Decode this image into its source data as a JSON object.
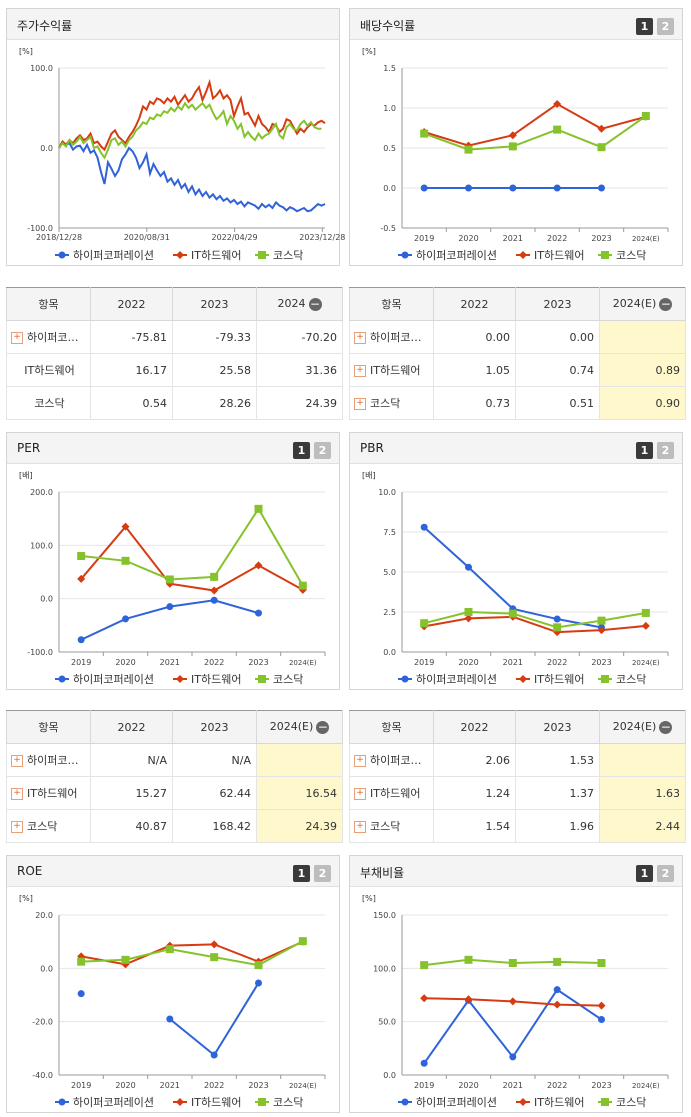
{
  "legend": [
    "하이퍼코퍼레이션",
    "IT하드웨어",
    "코스닥"
  ],
  "colors": {
    "s1": "#2f63d9",
    "s2": "#d63b12",
    "s3": "#86c22b"
  },
  "panels": {
    "stock": {
      "title": "주가수익률",
      "unit": "[%]"
    },
    "dividend": {
      "title": "배당수익률",
      "unit": "[%]",
      "btn1": "1",
      "btn2": "2"
    },
    "per": {
      "title": "PER",
      "unit": "[배]",
      "btn1": "1",
      "btn2": "2"
    },
    "pbr": {
      "title": "PBR",
      "unit": "[배]",
      "btn1": "1",
      "btn2": "2"
    },
    "roe": {
      "title": "ROE",
      "unit": "[%]",
      "btn1": "1",
      "btn2": "2"
    },
    "debt": {
      "title": "부채비율",
      "unit": "[%]",
      "btn1": "1",
      "btn2": "2"
    }
  },
  "tables": {
    "stock": {
      "h": [
        "항목",
        "2022",
        "2023",
        "2024"
      ],
      "rows": [
        {
          "name": "하이퍼코…",
          "v": [
            "-75.81",
            "-79.33",
            "-70.20"
          ],
          "plus": true
        },
        {
          "name": "IT하드웨어",
          "v": [
            "16.17",
            "25.58",
            "31.36"
          ],
          "plus": false
        },
        {
          "name": "코스닥",
          "v": [
            "0.54",
            "28.26",
            "24.39"
          ],
          "plus": false
        }
      ]
    },
    "dividend": {
      "h": [
        "항목",
        "2022",
        "2023",
        "2024(E)"
      ],
      "rows": [
        {
          "name": "하이퍼코…",
          "v": [
            "0.00",
            "0.00",
            ""
          ],
          "plus": true
        },
        {
          "name": "IT하드웨어",
          "v": [
            "1.05",
            "0.74",
            "0.89"
          ],
          "plus": true
        },
        {
          "name": "코스닥",
          "v": [
            "0.73",
            "0.51",
            "0.90"
          ],
          "plus": true
        }
      ]
    },
    "per": {
      "h": [
        "항목",
        "2022",
        "2023",
        "2024(E)"
      ],
      "rows": [
        {
          "name": "하이퍼코…",
          "v": [
            "N/A",
            "N/A",
            ""
          ],
          "plus": true
        },
        {
          "name": "IT하드웨어",
          "v": [
            "15.27",
            "62.44",
            "16.54"
          ],
          "plus": true
        },
        {
          "name": "코스닥",
          "v": [
            "40.87",
            "168.42",
            "24.39"
          ],
          "plus": true
        }
      ]
    },
    "pbr": {
      "h": [
        "항목",
        "2022",
        "2023",
        "2024(E)"
      ],
      "rows": [
        {
          "name": "하이퍼코…",
          "v": [
            "2.06",
            "1.53",
            ""
          ],
          "plus": true
        },
        {
          "name": "IT하드웨어",
          "v": [
            "1.24",
            "1.37",
            "1.63"
          ],
          "plus": true
        },
        {
          "name": "코스닥",
          "v": [
            "1.54",
            "1.96",
            "2.44"
          ],
          "plus": true
        }
      ]
    }
  },
  "chart_data": [
    {
      "id": "stock",
      "type": "line",
      "title": "주가수익률",
      "ylabel": "[%]",
      "ylim": [
        -100,
        100
      ],
      "yticks": [
        "100.0",
        "0.0",
        "-100.0"
      ],
      "xticks": [
        "2018/12/28",
        "2020/08/31",
        "2022/04/29",
        "2023/12/28"
      ],
      "series": [
        {
          "name": "하이퍼코퍼레이션",
          "values": [
            0,
            8,
            4,
            6,
            -2,
            2,
            3,
            -4,
            4,
            -6,
            -3,
            -12,
            -30,
            -45,
            -18,
            -26,
            -35,
            -28,
            -14,
            -8,
            0,
            -4,
            -12,
            -25,
            -18,
            -8,
            -32,
            -20,
            -28,
            -35,
            -30,
            -42,
            -38,
            -46,
            -40,
            -50,
            -45,
            -55,
            -48,
            -58,
            -52,
            -60,
            -55,
            -62,
            -58,
            -64,
            -60,
            -66,
            -63,
            -68,
            -65,
            -70,
            -67,
            -73,
            -68,
            -70,
            -72,
            -76,
            -70,
            -74,
            -71,
            -75,
            -68,
            -72,
            -74,
            -78,
            -74,
            -76,
            -79,
            -77,
            -75,
            -79,
            -78,
            -74,
            -70,
            -72,
            -70
          ]
        },
        {
          "name": "IT하드웨어",
          "values": [
            0,
            8,
            4,
            10,
            6,
            12,
            16,
            10,
            12,
            18,
            6,
            8,
            2,
            -2,
            8,
            18,
            22,
            14,
            10,
            6,
            14,
            20,
            28,
            38,
            52,
            48,
            58,
            55,
            62,
            60,
            56,
            62,
            58,
            64,
            54,
            60,
            66,
            58,
            62,
            70,
            76,
            60,
            70,
            82,
            62,
            66,
            72,
            62,
            66,
            60,
            40,
            52,
            62,
            42,
            44,
            36,
            28,
            40,
            30,
            26,
            20,
            30,
            28,
            20,
            24,
            36,
            34,
            26,
            18,
            24,
            20,
            26,
            30,
            28,
            32,
            34,
            31
          ]
        },
        {
          "name": "코스닥",
          "values": [
            0,
            6,
            2,
            10,
            4,
            8,
            14,
            6,
            10,
            14,
            0,
            2,
            -6,
            -12,
            -2,
            10,
            12,
            4,
            8,
            2,
            10,
            14,
            22,
            26,
            32,
            30,
            38,
            36,
            42,
            40,
            46,
            44,
            50,
            46,
            52,
            48,
            56,
            50,
            54,
            48,
            52,
            56,
            50,
            54,
            44,
            36,
            40,
            46,
            30,
            40,
            34,
            24,
            30,
            14,
            20,
            14,
            10,
            18,
            12,
            16,
            18,
            24,
            30,
            16,
            12,
            26,
            30,
            24,
            22,
            30,
            34,
            28,
            32,
            26,
            24,
            24
          ]
        }
      ]
    },
    {
      "id": "dividend",
      "type": "line",
      "title": "배당수익률",
      "ylabel": "[%]",
      "ylim": [
        -0.5,
        1.5
      ],
      "yticks": [
        "1.5",
        "1.0",
        "0.5",
        "0.0",
        "-0.5"
      ],
      "categories": [
        "2019",
        "2020",
        "2021",
        "2022",
        "2023",
        "2024(E)"
      ],
      "series": [
        {
          "name": "하이퍼코퍼레이션",
          "values": [
            0.0,
            0.0,
            0.0,
            0.0,
            0.0,
            null
          ]
        },
        {
          "name": "IT하드웨어",
          "values": [
            0.7,
            0.53,
            0.66,
            1.05,
            0.74,
            0.89
          ]
        },
        {
          "name": "코스닥",
          "values": [
            0.68,
            0.48,
            0.52,
            0.73,
            0.51,
            0.9
          ]
        }
      ]
    },
    {
      "id": "per",
      "type": "line",
      "title": "PER",
      "ylabel": "[배]",
      "ylim": [
        -100,
        200
      ],
      "yticks": [
        "200.0",
        "100.0",
        "0.0",
        "-100.0"
      ],
      "categories": [
        "2019",
        "2020",
        "2021",
        "2022",
        "2023",
        "2024(E)"
      ],
      "series": [
        {
          "name": "하이퍼코퍼레이션",
          "values": [
            -77,
            -38,
            -15,
            -3,
            -27,
            null
          ]
        },
        {
          "name": "IT하드웨어",
          "values": [
            37,
            135,
            28,
            15.27,
            62.44,
            16.54
          ]
        },
        {
          "name": "코스닥",
          "values": [
            80,
            71,
            36,
            40.87,
            168.42,
            24.39
          ]
        }
      ]
    },
    {
      "id": "pbr",
      "type": "line",
      "title": "PBR",
      "ylabel": "[배]",
      "ylim": [
        0,
        10
      ],
      "yticks": [
        "10.0",
        "7.5",
        "5.0",
        "2.5",
        "0.0"
      ],
      "categories": [
        "2019",
        "2020",
        "2021",
        "2022",
        "2023",
        "2024(E)"
      ],
      "series": [
        {
          "name": "하이퍼코퍼레이션",
          "values": [
            7.8,
            5.3,
            2.7,
            2.06,
            1.53,
            null
          ]
        },
        {
          "name": "IT하드웨어",
          "values": [
            1.6,
            2.1,
            2.2,
            1.24,
            1.37,
            1.63
          ]
        },
        {
          "name": "코스닥",
          "values": [
            1.8,
            2.5,
            2.4,
            1.54,
            1.96,
            2.44
          ]
        }
      ]
    },
    {
      "id": "roe",
      "type": "line",
      "title": "ROE",
      "ylabel": "[%]",
      "ylim": [
        -40,
        20
      ],
      "yticks": [
        "20.0",
        "0.0",
        "-20.0",
        "-40.0"
      ],
      "categories": [
        "2019",
        "2020",
        "2021",
        "2022",
        "2023",
        "2024(E)"
      ],
      "series": [
        {
          "name": "하이퍼코퍼레이션",
          "values": [
            -9.5,
            null,
            -19,
            -32.5,
            -5.5,
            null
          ]
        },
        {
          "name": "IT하드웨어",
          "values": [
            4.5,
            1.5,
            8.5,
            9,
            2.5,
            10
          ]
        },
        {
          "name": "코스닥",
          "values": [
            2.5,
            3.2,
            7.2,
            4.2,
            1.2,
            10.2
          ]
        }
      ]
    },
    {
      "id": "debt",
      "type": "line",
      "title": "부채비율",
      "ylabel": "[%]",
      "ylim": [
        0,
        150
      ],
      "yticks": [
        "150.0",
        "100.0",
        "50.0",
        "0.0"
      ],
      "categories": [
        "2019",
        "2020",
        "2021",
        "2022",
        "2023",
        "2024(E)"
      ],
      "series": [
        {
          "name": "하이퍼코퍼레이션",
          "values": [
            11,
            70,
            17,
            80,
            52,
            null
          ]
        },
        {
          "name": "IT하드웨어",
          "values": [
            72,
            71,
            69,
            66,
            65,
            null
          ]
        },
        {
          "name": "코스닥",
          "values": [
            103,
            108,
            105,
            106,
            105,
            null
          ]
        }
      ]
    }
  ]
}
